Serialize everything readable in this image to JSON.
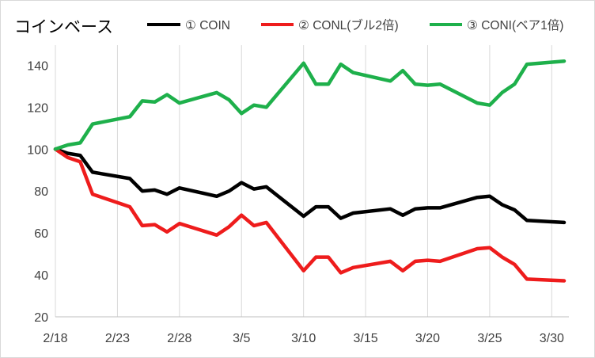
{
  "chart_data": {
    "type": "line",
    "title": "コインベース",
    "xlabel": "",
    "ylabel": "",
    "ylim": [
      20,
      150
    ],
    "yticks": [
      20,
      40,
      60,
      80,
      100,
      120,
      140
    ],
    "xticks": [
      "2/18",
      "2/23",
      "2/28",
      "3/5",
      "3/10",
      "3/15",
      "3/20",
      "3/25",
      "3/30"
    ],
    "grid": "vertical",
    "legend_position": "top",
    "x": [
      "2/18",
      "2/19",
      "2/20",
      "2/21",
      "2/24",
      "2/25",
      "2/26",
      "2/27",
      "2/28",
      "3/3",
      "3/4",
      "3/5",
      "3/6",
      "3/7",
      "3/10",
      "3/11",
      "3/12",
      "3/13",
      "3/14",
      "3/17",
      "3/18",
      "3/19",
      "3/20",
      "3/21",
      "3/24",
      "3/25",
      "3/26",
      "3/27",
      "3/28",
      "3/31"
    ],
    "series": [
      {
        "name": "① COIN",
        "color": "#000000",
        "values": [
          100,
          98,
          97,
          89,
          86,
          80,
          80.5,
          78.5,
          81.5,
          77.5,
          80,
          84,
          81,
          82,
          68,
          72.5,
          72.5,
          67,
          69.5,
          71.5,
          68.5,
          71.5,
          72,
          72,
          77,
          77.5,
          73.5,
          71,
          66,
          65
        ]
      },
      {
        "name": "② CONL(ブル2倍)",
        "color": "#ee1c1c",
        "values": [
          100,
          96,
          94,
          78.5,
          72.5,
          63.5,
          64,
          60.5,
          64.5,
          59,
          63,
          68.5,
          63.5,
          65,
          42,
          48.5,
          48.5,
          41,
          43.5,
          46.5,
          42,
          46.5,
          47,
          46.5,
          52.5,
          53,
          48.5,
          45,
          38,
          37.2
        ]
      },
      {
        "name": "③ CONI(ベア1倍)",
        "color": "#1eb04b",
        "values": [
          100,
          102,
          103,
          112,
          115.5,
          123,
          122.5,
          126,
          122,
          127,
          123.5,
          117,
          121,
          120,
          141,
          131,
          131,
          140.5,
          136.5,
          132.5,
          137.5,
          131,
          130.5,
          131,
          122,
          121,
          127,
          131,
          140.5,
          142
        ]
      }
    ]
  }
}
